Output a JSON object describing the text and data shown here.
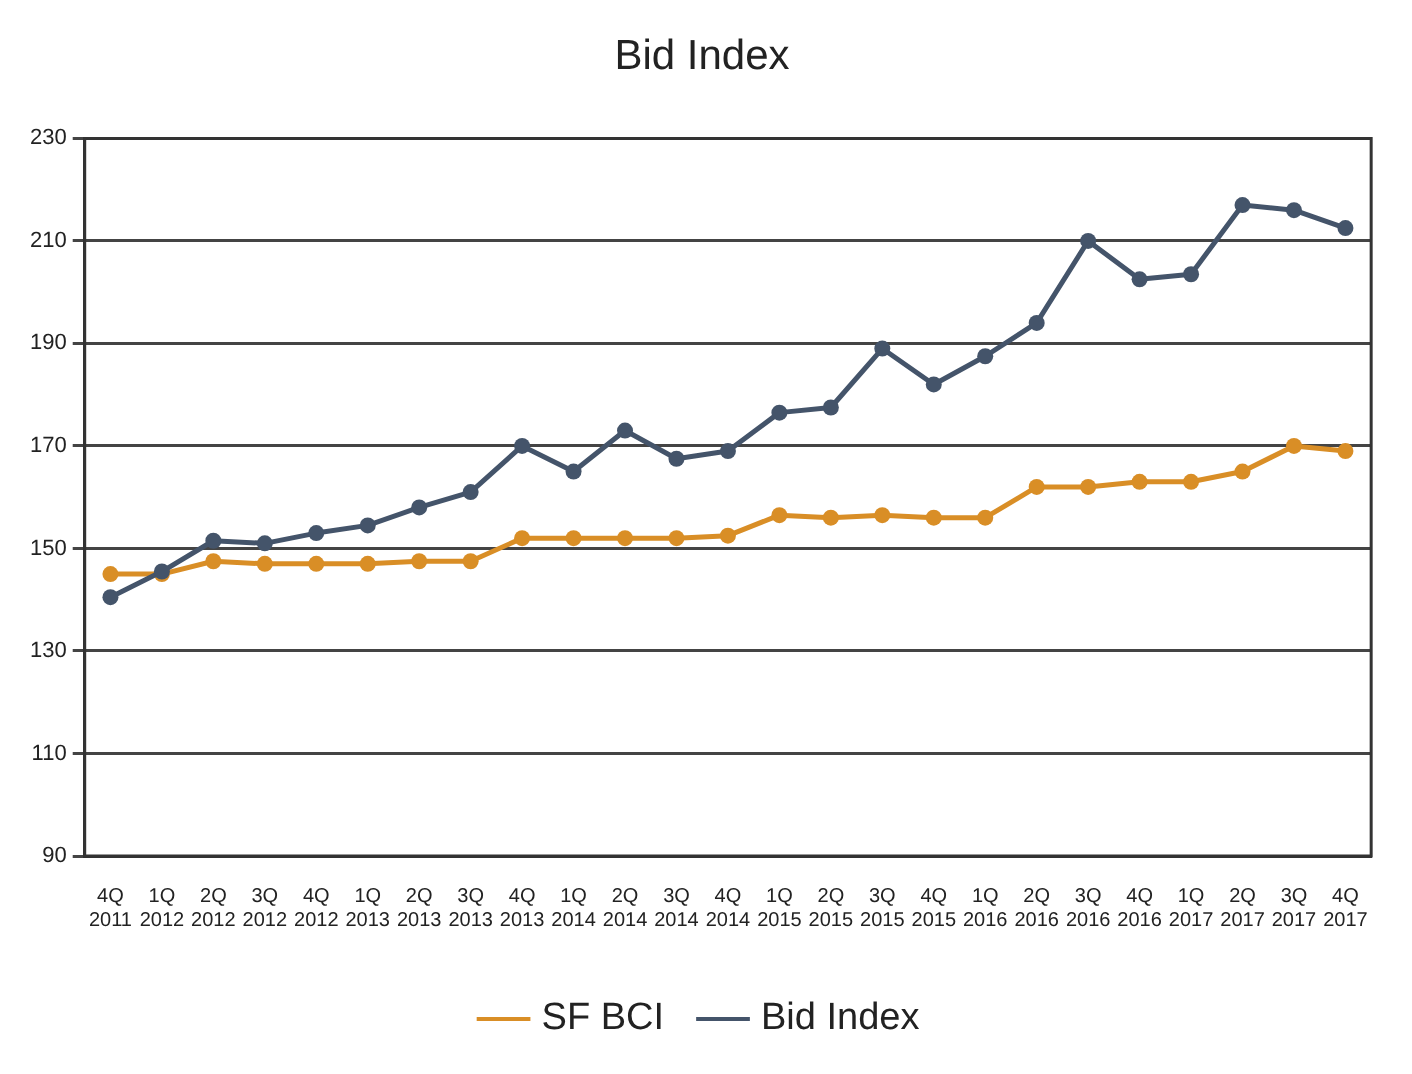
{
  "chart_data": {
    "type": "line",
    "title": "Bid Index",
    "categories": [
      "4Q 2011",
      "1Q 2012",
      "2Q 2012",
      "3Q 2012",
      "4Q 2012",
      "1Q 2013",
      "2Q 2013",
      "3Q 2013",
      "4Q 2013",
      "1Q 2014",
      "2Q 2014",
      "3Q 2014",
      "4Q 2014",
      "1Q 2015",
      "2Q 2015",
      "3Q 2015",
      "4Q 2015",
      "1Q 2016",
      "2Q 2016",
      "3Q 2016",
      "4Q 2016",
      "1Q 2017",
      "2Q 2017",
      "3Q 2017",
      "4Q 2017"
    ],
    "series": [
      {
        "name": "SF BCI",
        "color": "#d98e26",
        "values": [
          145,
          145,
          147.5,
          147,
          147,
          147,
          147.5,
          147.5,
          152,
          152,
          152,
          152,
          152.5,
          156.5,
          156,
          156.5,
          156,
          156,
          162,
          162,
          163,
          163,
          165,
          170,
          169
        ]
      },
      {
        "name": "Bid Index",
        "color": "#44546a",
        "values": [
          140.5,
          145.5,
          151.5,
          151,
          153,
          154.5,
          158,
          161,
          170,
          165,
          173,
          167.5,
          169,
          176.5,
          177.5,
          189,
          182,
          187.5,
          194,
          210,
          202.5,
          203.5,
          217,
          216,
          212.5
        ]
      }
    ],
    "ylim": [
      90,
      230
    ],
    "yticks": [
      90,
      110,
      130,
      150,
      170,
      190,
      210,
      230
    ],
    "grid": "y",
    "legend": "bottom",
    "marker": "circle",
    "line_style": "solid"
  }
}
